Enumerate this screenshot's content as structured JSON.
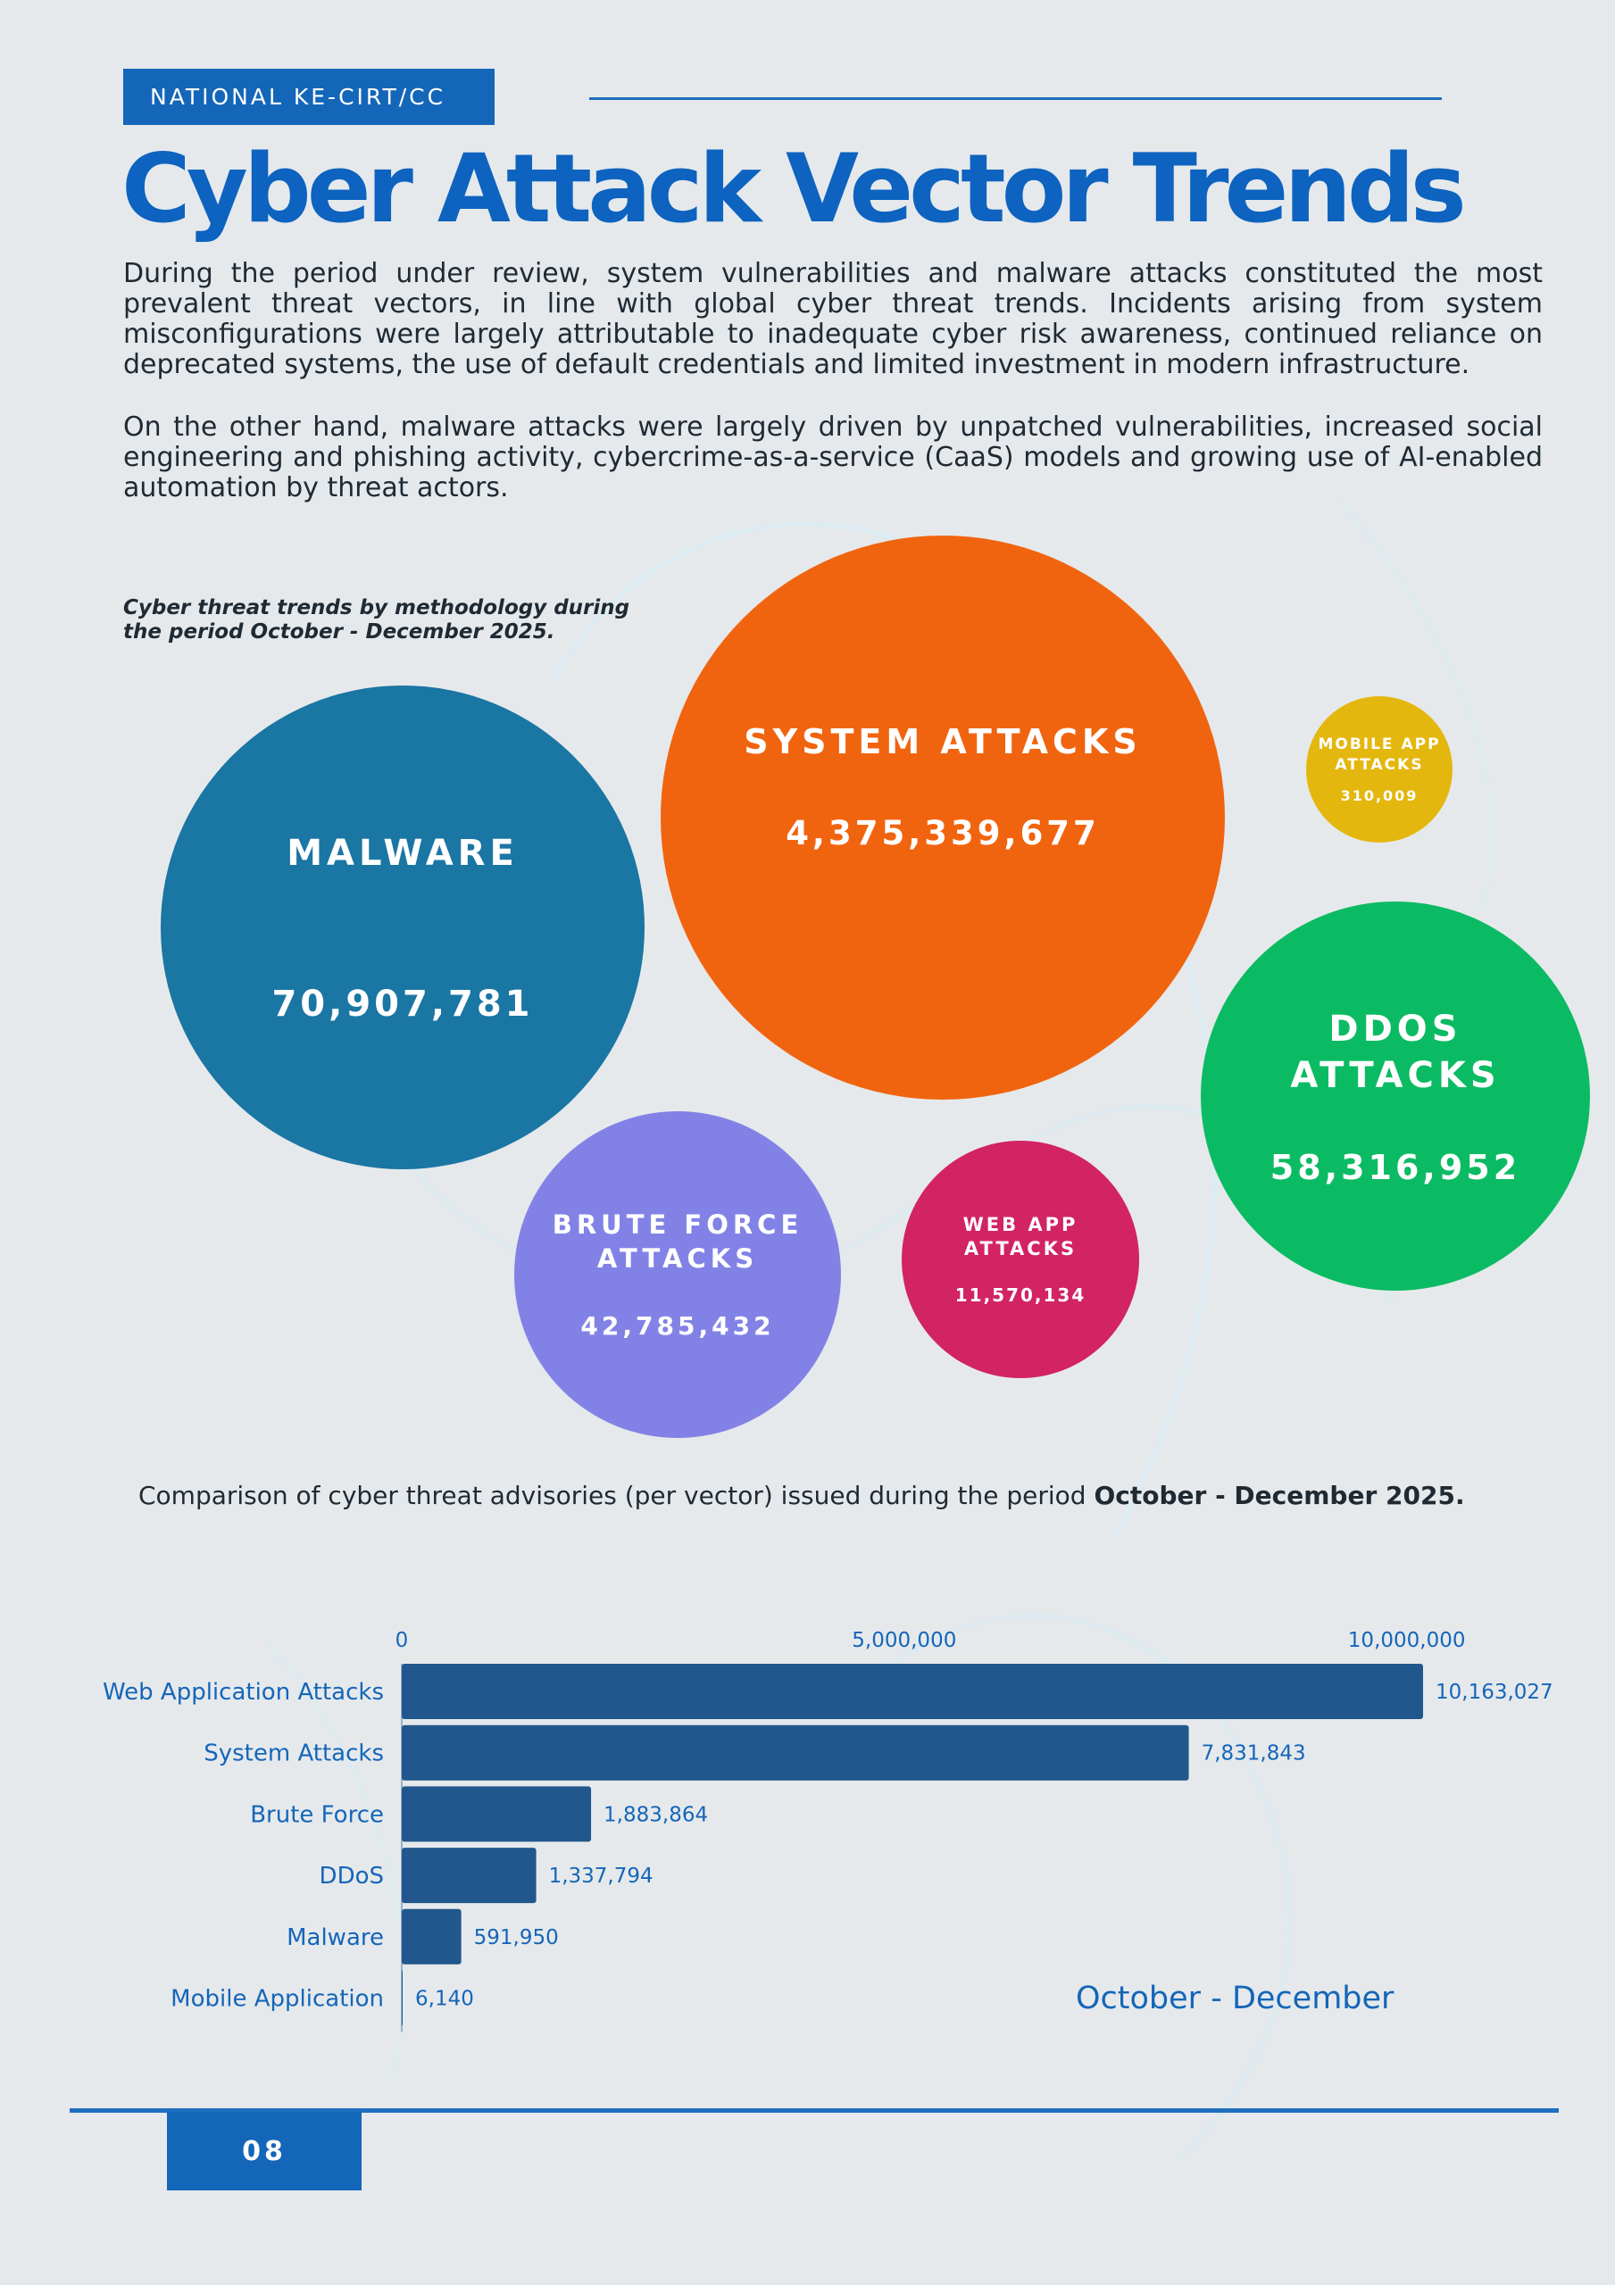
{
  "header": {
    "tag": "NATIONAL KE-CIRT/CC",
    "title": "Cyber Attack Vector Trends"
  },
  "intro": {
    "paragraph_1": "During the period under review, system vulnerabilities and malware attacks constituted the most prevalent threat vectors, in line with global cyber threat trends. Incidents arising from system misconfigurations were largely attributable to inadequate cyber risk awareness, continued reliance on deprecated systems, the use of default credentials and limited investment in modern infrastructure.",
    "paragraph_2": "On the other hand, malware attacks were largely driven by unpatched vulnerabilities, increased social engineering and phishing activity, cybercrime-as-a-service (CaaS) models and growing use of AI-enabled automation by threat actors."
  },
  "bubbles": {
    "caption": "Cyber threat trends by methodology during the period October - December 2025.",
    "items": [
      {
        "label": "MALWARE",
        "value": "70,907,781",
        "color": "#1a76a3"
      },
      {
        "label": "SYSTEM ATTACKS",
        "value": "4,375,339,677",
        "color": "#f1640f"
      },
      {
        "label": "MOBILE APP ATTACKS",
        "value": "310,009",
        "color": "#e4b70e"
      },
      {
        "label": "DDOS ATTACKS",
        "value": "58,316,952",
        "color": "#0bbb63"
      },
      {
        "label": "BRUTE FORCE ATTACKS",
        "value": "42,785,432",
        "color": "#8282e6"
      },
      {
        "label": "WEB APP ATTACKS",
        "value": "11,570,134",
        "color": "#d22362"
      }
    ]
  },
  "advisories": {
    "caption_prefix": "Comparison of cyber threat advisories (per vector) issued during the period ",
    "caption_period": "October - December 2025."
  },
  "chart_data": {
    "type": "bar",
    "orientation": "horizontal",
    "categories": [
      "Web Application Attacks",
      "System Attacks",
      "Brute Force",
      "DDoS",
      "Malware",
      "Mobile Application"
    ],
    "series": [
      {
        "name": "October - December",
        "values": [
          10163027,
          7831843,
          1883864,
          1337794,
          591950,
          6140
        ]
      }
    ],
    "value_labels": [
      "10,163,027",
      "7,831,843",
      "1,883,864",
      "1,337,794",
      "591,950",
      "6,140"
    ],
    "x_ticks": [
      0,
      5000000,
      10000000
    ],
    "x_tick_labels": [
      "0",
      "5,000,000",
      "10,000,000"
    ],
    "xlim": [
      0,
      10163027
    ],
    "legend_label": "October - December",
    "bar_color": "#21578c",
    "label_color": "#1466b8",
    "grid": false,
    "legend_position": "bottom-right"
  },
  "footer": {
    "page_number": "08"
  }
}
